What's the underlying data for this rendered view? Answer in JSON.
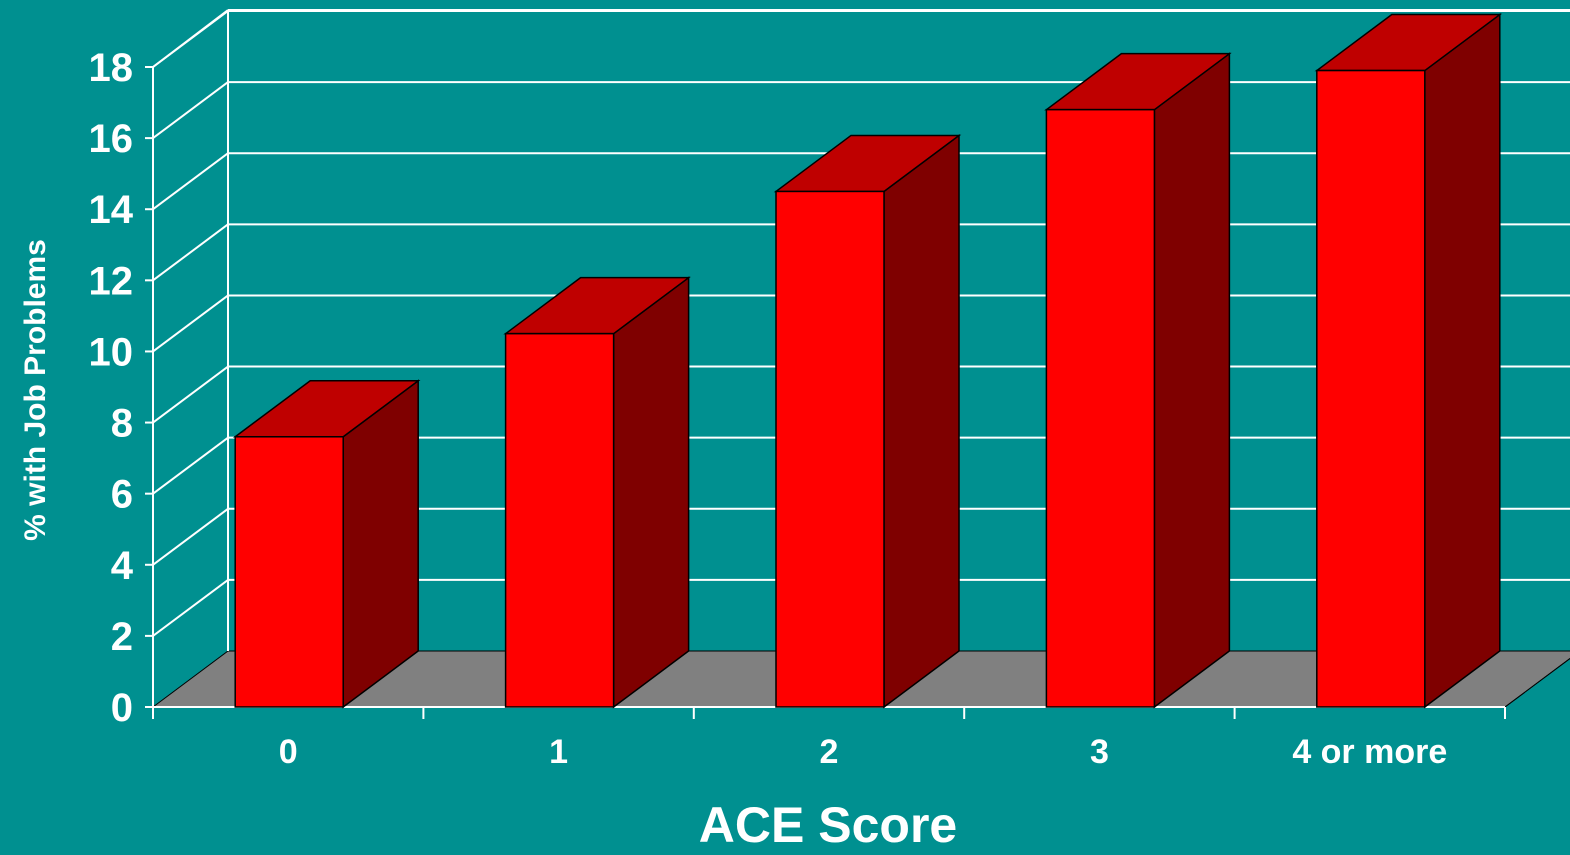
{
  "colors": {
    "background": "#009090",
    "bar_front": "#ff0000",
    "bar_top": "#bf0000",
    "bar_side": "#7f0000",
    "floor": "#808080",
    "grid": "#ffffff"
  },
  "chart_data": {
    "type": "bar",
    "title": "",
    "xlabel": "ACE Score",
    "ylabel": "% with Job Problems",
    "categories": [
      "0",
      "1",
      "2",
      "3",
      "4 or more"
    ],
    "values": [
      7.6,
      10.5,
      14.5,
      16.8,
      17.9
    ],
    "ylim": [
      0,
      18
    ],
    "yticks": [
      0,
      2,
      4,
      6,
      8,
      10,
      12,
      14,
      16,
      18
    ],
    "grid": true,
    "legend": "none",
    "style": "3d"
  }
}
